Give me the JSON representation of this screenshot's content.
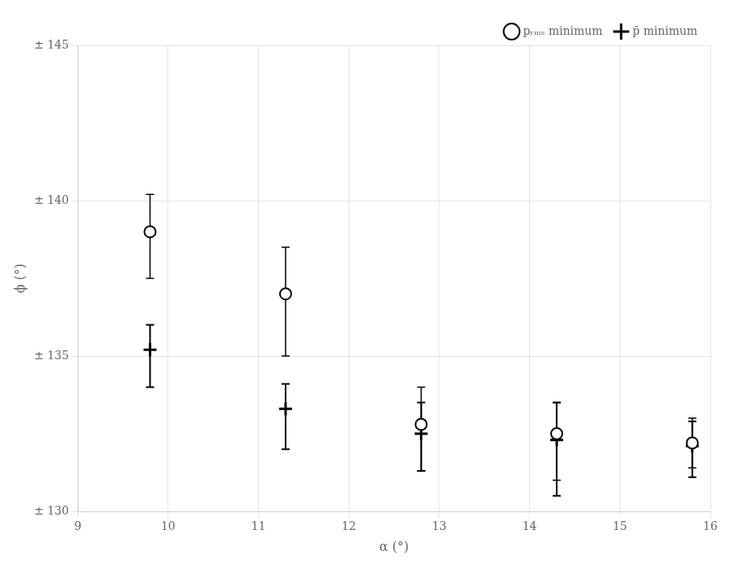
{
  "chart_data": {
    "type": "scatter",
    "xlabel": "α (°)",
    "ylabel": "ϕ (°)",
    "x": [
      9.8,
      11.3,
      12.8,
      14.3,
      15.8
    ],
    "series": [
      {
        "name": "pᵣₘₛ minimum",
        "color": "#000000",
        "marker": "circle_open",
        "values": [
          139.0,
          137.0,
          132.8,
          132.5,
          132.2
        ],
        "yerr_low": [
          1.5,
          2.0,
          1.5,
          1.5,
          0.8
        ],
        "yerr_high": [
          1.2,
          1.5,
          1.2,
          1.0,
          0.8
        ]
      },
      {
        "name": "p̄ minimum",
        "color": "#000000",
        "marker": "plus",
        "values": [
          135.2,
          133.3,
          132.5,
          132.3,
          132.1
        ],
        "yerr_low": [
          1.2,
          1.3,
          1.2,
          1.8,
          1.0
        ],
        "yerr_high": [
          0.8,
          0.8,
          1.0,
          1.2,
          0.8
        ]
      }
    ],
    "xlim": [
      9,
      16
    ],
    "ylim": [
      130,
      145
    ],
    "xticks": [
      9,
      10,
      11,
      12,
      13,
      14,
      15,
      16
    ],
    "yticks": [
      {
        "value": 130,
        "label": "± 130"
      },
      {
        "value": 135,
        "label": "± 135"
      },
      {
        "value": 140,
        "label": "± 140"
      },
      {
        "value": 145,
        "label": "± 145"
      }
    ],
    "grid": true,
    "legend": "upper right"
  }
}
